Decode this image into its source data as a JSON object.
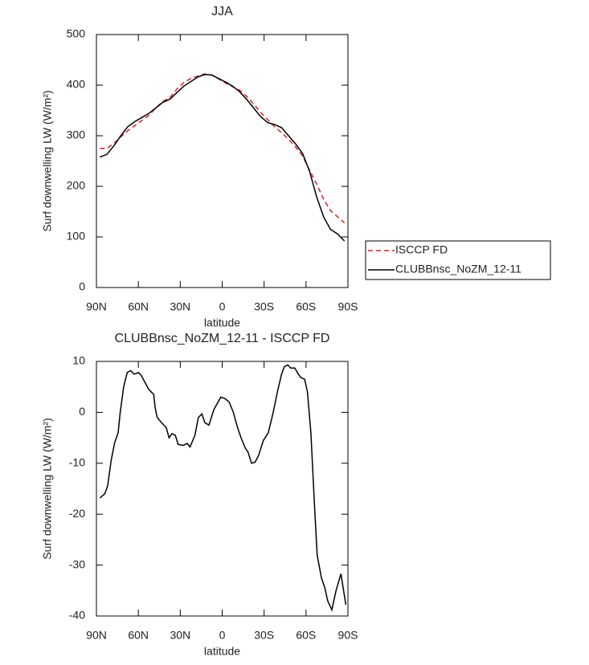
{
  "chart_data": [
    {
      "type": "line",
      "title": "JJA",
      "xlabel": "latitude",
      "ylabel": "Surf downwelling LW (W/m²)",
      "x": [
        87.5,
        82.5,
        77.5,
        72.5,
        67.5,
        62.5,
        57.5,
        52.5,
        47.5,
        42.5,
        37.5,
        32.5,
        27.5,
        22.5,
        17.5,
        12.5,
        7.5,
        2.5,
        -2.5,
        -7.5,
        -12.5,
        -17.5,
        -22.5,
        -27.5,
        -32.5,
        -37.5,
        -42.5,
        -47.5,
        -52.5,
        -57.5,
        -62.5,
        -67.5,
        -72.5,
        -77.5,
        -82.5,
        -87.5
      ],
      "series": [
        {
          "name": "ISCCP FD",
          "color": "#e8191c",
          "line_style": "dashed",
          "values": [
            275,
            275,
            285,
            298,
            310,
            320,
            330,
            340,
            355,
            368,
            375,
            392,
            405,
            413,
            418,
            422,
            420,
            412,
            404,
            397,
            390,
            378,
            363,
            346,
            332,
            318,
            306,
            293,
            278,
            260,
            232,
            205,
            175,
            152,
            140,
            128
          ]
        },
        {
          "name": "CLUBBnsc_NoZM_12-11",
          "color": "#000000",
          "line_style": "solid",
          "values": [
            258,
            263,
            280,
            300,
            318,
            328,
            336,
            344,
            355,
            366,
            372,
            385,
            398,
            407,
            416,
            421,
            420,
            413,
            406,
            398,
            387,
            372,
            355,
            338,
            326,
            322,
            316,
            300,
            284,
            265,
            230,
            180,
            140,
            115,
            106,
            92
          ]
        }
      ],
      "xlim": [
        90,
        -90
      ],
      "xticks": [
        {
          "value": 90,
          "label": "90N"
        },
        {
          "value": 60,
          "label": "60N"
        },
        {
          "value": 30,
          "label": "30N"
        },
        0,
        {
          "value": -30,
          "label": "30S"
        },
        {
          "value": -60,
          "label": "60S"
        },
        {
          "value": -90,
          "label": "90S"
        }
      ],
      "ylim": [
        0,
        500
      ],
      "yticks": [
        0,
        100,
        200,
        300,
        400,
        500
      ],
      "legend": "right"
    },
    {
      "type": "line",
      "title": "CLUBBnsc_NoZM_12-11 - ISCCP FD",
      "xlabel": "latitude",
      "ylabel": "Surf downwelling LW (W/m²)",
      "x": [
        87.5,
        84,
        82,
        79.5,
        77,
        74.5,
        73,
        70.5,
        68,
        65.5,
        63,
        60,
        58,
        55.5,
        52.5,
        49,
        48,
        46.5,
        43.5,
        40,
        38,
        36,
        33.5,
        31.5,
        28,
        25,
        23,
        19.5,
        17,
        14.5,
        12.5,
        9.5,
        6,
        4,
        1,
        -2,
        -5,
        -8,
        -11,
        -13.5,
        -16.5,
        -18.5,
        -21,
        -23.5,
        -26,
        -29.5,
        -33,
        -36.5,
        -39.5,
        -42.5,
        -44.5,
        -47,
        -49,
        -52,
        -54.5,
        -56.5,
        -59,
        -61,
        -63.5,
        -66,
        -68,
        -71,
        -73.5,
        -75.5,
        -78.5,
        -81.5,
        -85,
        -88.5
      ],
      "values": [
        -16.8,
        -16,
        -14.5,
        -9.5,
        -6,
        -4,
        0,
        5,
        7.8,
        8.2,
        7.5,
        7.8,
        7.3,
        6,
        4.5,
        3.5,
        1,
        -1,
        -2,
        -3,
        -5,
        -4.2,
        -4.5,
        -6.3,
        -6.5,
        -6.1,
        -6.8,
        -4.5,
        -1,
        -0.3,
        -2,
        -2.5,
        0.5,
        1.5,
        3,
        2.7,
        2,
        0,
        -3,
        -5,
        -7,
        -7.8,
        -10,
        -9.8,
        -8.5,
        -5.5,
        -4,
        0,
        4,
        7.5,
        9,
        9.3,
        8.7,
        8.7,
        7.5,
        6.8,
        6.5,
        4,
        -4,
        -18,
        -28,
        -32.5,
        -34.5,
        -37,
        -38.8,
        -35,
        -31.7,
        -37.8
      ],
      "color": "#000000",
      "xlim": [
        90,
        -90
      ],
      "xticks": [
        {
          "value": 90,
          "label": "90N"
        },
        {
          "value": 60,
          "label": "60N"
        },
        {
          "value": 30,
          "label": "30N"
        },
        0,
        {
          "value": -30,
          "label": "30S"
        },
        {
          "value": -60,
          "label": "60S"
        },
        {
          "value": -90,
          "label": "90S"
        }
      ],
      "ylim": [
        -40,
        10
      ],
      "yticks": [
        -40,
        -30,
        -20,
        -10,
        0,
        10
      ]
    }
  ]
}
